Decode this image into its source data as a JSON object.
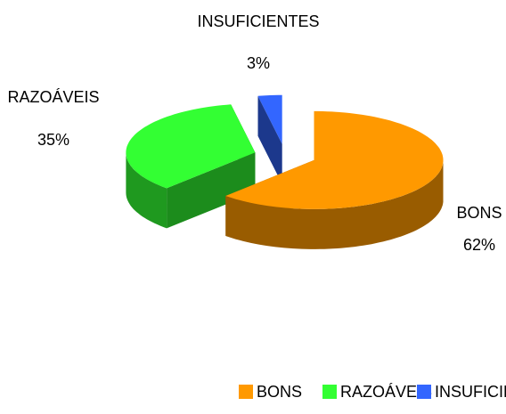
{
  "chart_data": {
    "type": "pie",
    "categories": [
      "BONS",
      "RAZOÁVEIS",
      "INSUFICIENTES"
    ],
    "values": [
      62,
      35,
      3
    ],
    "value_labels": [
      "62%",
      "35%",
      "3%"
    ],
    "colors": [
      "#ff9900",
      "#33ff33",
      "#3366ff"
    ],
    "legend": "bottom"
  }
}
